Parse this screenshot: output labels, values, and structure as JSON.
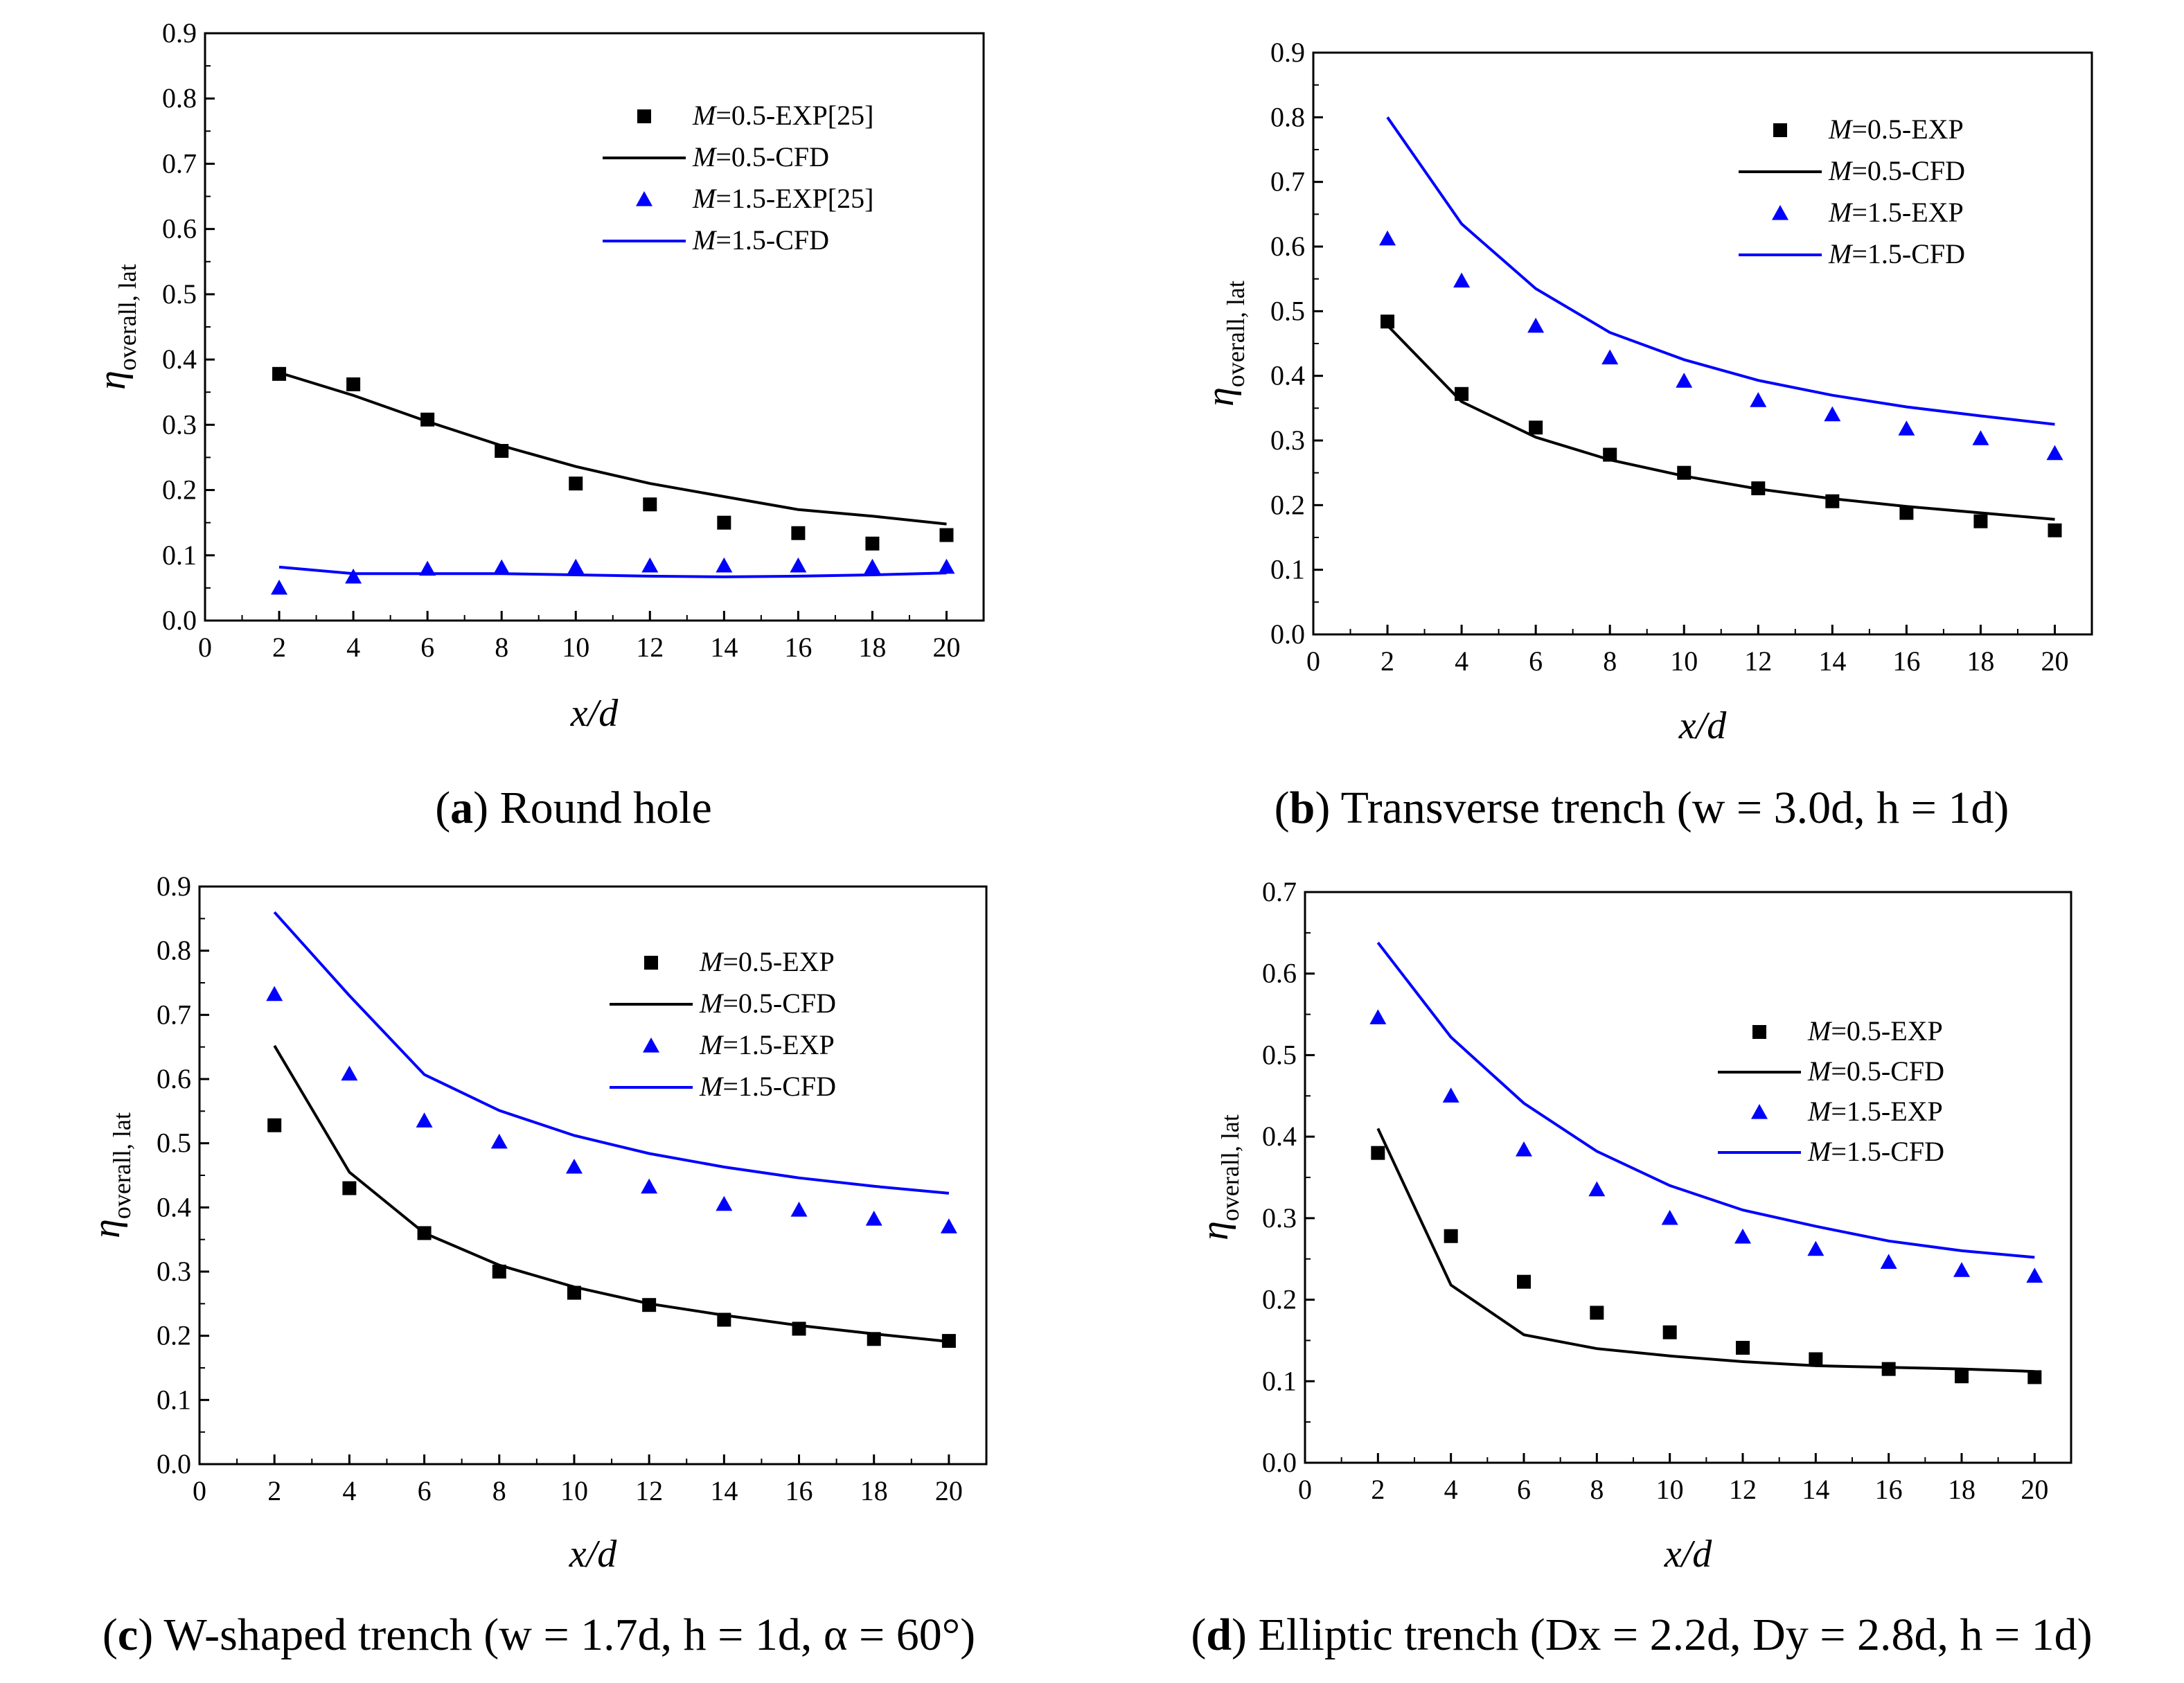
{
  "colors": {
    "m05": "#000000",
    "m15": "#0000ff"
  },
  "chart_data": [
    {
      "id": "a",
      "type": "line",
      "caption": {
        "letter": "a",
        "text": "Round hole"
      },
      "xlabel": "x/d",
      "ylabel": {
        "symbol": "η",
        "subscript": "overall, lat"
      },
      "xlim": [
        0,
        21
      ],
      "ylim": [
        0,
        0.9
      ],
      "xticks": [
        "0",
        "2",
        "4",
        "6",
        "8",
        "10",
        "12",
        "14",
        "16",
        "18",
        "20"
      ],
      "yticks": [
        "0.0",
        "0.1",
        "0.2",
        "0.3",
        "0.4",
        "0.5",
        "0.6",
        "0.7",
        "0.8",
        "0.9"
      ],
      "legend_position": "top-right",
      "series": [
        {
          "name": "M=0.5-EXP[25]",
          "italic": "M",
          "rest": "=0.5-EXP[25]",
          "kind": "scatter",
          "marker": "square",
          "color": "#000000",
          "x": [
            2,
            4,
            6,
            8,
            10,
            12,
            14,
            16,
            18,
            20
          ],
          "y": [
            0.378,
            0.362,
            0.308,
            0.26,
            0.21,
            0.178,
            0.15,
            0.134,
            0.118,
            0.131
          ]
        },
        {
          "name": "M=0.5-CFD",
          "italic": "M",
          "rest": "=0.5-CFD",
          "kind": "line",
          "color": "#000000",
          "x": [
            2,
            4,
            6,
            8,
            10,
            12,
            14,
            16,
            18,
            20
          ],
          "y": [
            0.38,
            0.345,
            0.305,
            0.268,
            0.236,
            0.21,
            0.19,
            0.17,
            0.16,
            0.148
          ]
        },
        {
          "name": "M=1.5-EXP[25]",
          "italic": "M",
          "rest": "=1.5-EXP[25]",
          "kind": "scatter",
          "marker": "triangle",
          "color": "#0000ff",
          "x": [
            2,
            4,
            6,
            8,
            10,
            12,
            14,
            16,
            18,
            20
          ],
          "y": [
            0.05,
            0.067,
            0.079,
            0.081,
            0.082,
            0.084,
            0.084,
            0.084,
            0.082,
            0.082
          ]
        },
        {
          "name": "M=1.5-CFD",
          "italic": "M",
          "rest": "=1.5-CFD",
          "kind": "line",
          "color": "#0000ff",
          "x": [
            2,
            4,
            6,
            8,
            10,
            12,
            14,
            16,
            18,
            20
          ],
          "y": [
            0.082,
            0.072,
            0.072,
            0.072,
            0.07,
            0.068,
            0.067,
            0.068,
            0.07,
            0.073
          ]
        }
      ]
    },
    {
      "id": "b",
      "type": "line",
      "caption": {
        "letter": "b",
        "text": "Transverse trench (w = 3.0d, h = 1d)"
      },
      "xlabel": "x/d",
      "ylabel": {
        "symbol": "η",
        "subscript": "overall, lat"
      },
      "xlim": [
        0,
        21
      ],
      "ylim": [
        0,
        0.9
      ],
      "xticks": [
        "0",
        "2",
        "4",
        "6",
        "8",
        "10",
        "12",
        "14",
        "16",
        "18",
        "20"
      ],
      "yticks": [
        "0.0",
        "0.1",
        "0.2",
        "0.3",
        "0.4",
        "0.5",
        "0.6",
        "0.7",
        "0.8",
        "0.9"
      ],
      "legend_position": "top-right",
      "series": [
        {
          "name": "M=0.5-EXP",
          "italic": "M",
          "rest": "=0.5-EXP",
          "kind": "scatter",
          "marker": "square",
          "color": "#000000",
          "x": [
            2,
            4,
            6,
            8,
            10,
            12,
            14,
            16,
            18,
            20
          ],
          "y": [
            0.484,
            0.372,
            0.32,
            0.278,
            0.25,
            0.226,
            0.206,
            0.188,
            0.175,
            0.161
          ]
        },
        {
          "name": "M=0.5-CFD",
          "italic": "M",
          "rest": "=0.5-CFD",
          "kind": "line",
          "color": "#000000",
          "x": [
            2,
            4,
            6,
            8,
            10,
            12,
            14,
            16,
            18,
            20
          ],
          "y": [
            0.478,
            0.36,
            0.305,
            0.27,
            0.245,
            0.225,
            0.21,
            0.198,
            0.188,
            0.178
          ]
        },
        {
          "name": "M=1.5-EXP",
          "italic": "M",
          "rest": "=1.5-EXP",
          "kind": "scatter",
          "marker": "triangle",
          "color": "#0000ff",
          "x": [
            2,
            4,
            6,
            8,
            10,
            12,
            14,
            16,
            18,
            20
          ],
          "y": [
            0.612,
            0.547,
            0.477,
            0.428,
            0.392,
            0.362,
            0.34,
            0.318,
            0.303,
            0.28
          ]
        },
        {
          "name": "M=1.5-CFD",
          "italic": "M",
          "rest": "=1.5-CFD",
          "kind": "line",
          "color": "#0000ff",
          "x": [
            2,
            4,
            6,
            8,
            10,
            12,
            14,
            16,
            18,
            20
          ],
          "y": [
            0.8,
            0.635,
            0.535,
            0.467,
            0.425,
            0.393,
            0.37,
            0.352,
            0.338,
            0.325
          ]
        }
      ]
    },
    {
      "id": "c",
      "type": "line",
      "caption": {
        "letter": "c",
        "text": "W-shaped trench (w = 1.7d, h = 1d, α = 60°)"
      },
      "xlabel": "x/d",
      "ylabel": {
        "symbol": "η",
        "subscript": "overall, lat"
      },
      "xlim": [
        0,
        21
      ],
      "ylim": [
        0,
        0.9
      ],
      "xticks": [
        "0",
        "2",
        "4",
        "6",
        "8",
        "10",
        "12",
        "14",
        "16",
        "18",
        "20"
      ],
      "yticks": [
        "0.0",
        "0.1",
        "0.2",
        "0.3",
        "0.4",
        "0.5",
        "0.6",
        "0.7",
        "0.8",
        "0.9"
      ],
      "legend_position": "top-right",
      "series": [
        {
          "name": "M=0.5-EXP",
          "italic": "M",
          "rest": "=0.5-EXP",
          "kind": "scatter",
          "marker": "square",
          "color": "#000000",
          "x": [
            2,
            4,
            6,
            8,
            10,
            12,
            14,
            16,
            18,
            20
          ],
          "y": [
            0.528,
            0.43,
            0.36,
            0.3,
            0.267,
            0.248,
            0.225,
            0.211,
            0.195,
            0.192
          ]
        },
        {
          "name": "M=0.5-CFD",
          "italic": "M",
          "rest": "=0.5-CFD",
          "kind": "line",
          "color": "#000000",
          "x": [
            2,
            4,
            6,
            8,
            10,
            12,
            14,
            16,
            18,
            20
          ],
          "y": [
            0.652,
            0.455,
            0.36,
            0.31,
            0.276,
            0.25,
            0.232,
            0.216,
            0.203,
            0.191
          ]
        },
        {
          "name": "M=1.5-EXP",
          "italic": "M",
          "rest": "=1.5-EXP",
          "kind": "scatter",
          "marker": "triangle",
          "color": "#0000ff",
          "x": [
            2,
            4,
            6,
            8,
            10,
            12,
            14,
            16,
            18,
            20
          ],
          "y": [
            0.732,
            0.608,
            0.535,
            0.502,
            0.463,
            0.432,
            0.405,
            0.396,
            0.382,
            0.37
          ]
        },
        {
          "name": "M=1.5-CFD",
          "italic": "M",
          "rest": "=1.5-CFD",
          "kind": "line",
          "color": "#0000ff",
          "x": [
            2,
            4,
            6,
            8,
            10,
            12,
            14,
            16,
            18,
            20
          ],
          "y": [
            0.86,
            0.73,
            0.607,
            0.551,
            0.512,
            0.484,
            0.463,
            0.446,
            0.433,
            0.422
          ]
        }
      ]
    },
    {
      "id": "d",
      "type": "line",
      "caption": {
        "letter": "d",
        "text": "Elliptic trench (Dx = 2.2d, Dy = 2.8d, h = 1d)"
      },
      "xlabel": "x/d",
      "ylabel": {
        "symbol": "η",
        "subscript": "overall, lat"
      },
      "xlim": [
        0,
        21
      ],
      "ylim": [
        0,
        0.7
      ],
      "xticks": [
        "0",
        "2",
        "4",
        "6",
        "8",
        "10",
        "12",
        "14",
        "16",
        "18",
        "20"
      ],
      "yticks": [
        "0.0",
        "0.1",
        "0.2",
        "0.3",
        "0.4",
        "0.5",
        "0.6",
        "0.7"
      ],
      "legend_position": "right",
      "series": [
        {
          "name": "M=0.5-EXP",
          "italic": "M",
          "rest": "=0.5-EXP",
          "kind": "scatter",
          "marker": "square",
          "color": "#000000",
          "x": [
            2,
            4,
            6,
            8,
            10,
            12,
            14,
            16,
            18,
            20
          ],
          "y": [
            0.38,
            0.278,
            0.222,
            0.184,
            0.16,
            0.141,
            0.127,
            0.115,
            0.106,
            0.105
          ]
        },
        {
          "name": "M=0.5-CFD",
          "italic": "M",
          "rest": "=0.5-CFD",
          "kind": "line",
          "color": "#000000",
          "x": [
            2,
            4,
            6,
            8,
            10,
            12,
            14,
            16,
            18,
            20
          ],
          "y": [
            0.41,
            0.218,
            0.157,
            0.14,
            0.131,
            0.124,
            0.119,
            0.117,
            0.115,
            0.112
          ]
        },
        {
          "name": "M=1.5-EXP",
          "italic": "M",
          "rest": "=1.5-EXP",
          "kind": "scatter",
          "marker": "triangle",
          "color": "#0000ff",
          "x": [
            2,
            4,
            6,
            8,
            10,
            12,
            14,
            16,
            18,
            20
          ],
          "y": [
            0.546,
            0.45,
            0.384,
            0.335,
            0.3,
            0.277,
            0.262,
            0.246,
            0.236,
            0.229
          ]
        },
        {
          "name": "M=1.5-CFD",
          "italic": "M",
          "rest": "=1.5-CFD",
          "kind": "line",
          "color": "#0000ff",
          "x": [
            2,
            4,
            6,
            8,
            10,
            12,
            14,
            16,
            18,
            20
          ],
          "y": [
            0.638,
            0.522,
            0.441,
            0.382,
            0.34,
            0.31,
            0.29,
            0.272,
            0.26,
            0.252
          ]
        }
      ]
    }
  ]
}
